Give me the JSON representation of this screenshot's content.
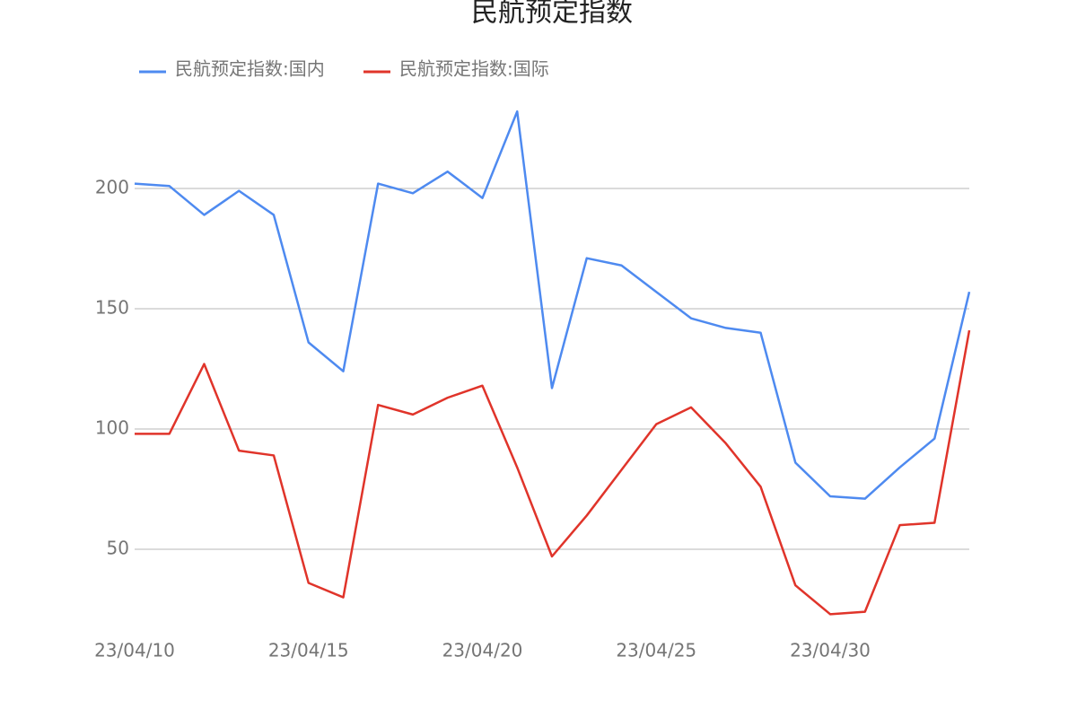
{
  "chart_data": {
    "type": "line",
    "title": "民航预定指数",
    "categories": [
      "23/04/10",
      null,
      null,
      null,
      null,
      "23/04/15",
      null,
      null,
      null,
      null,
      "23/04/20",
      null,
      null,
      null,
      null,
      "23/04/25",
      null,
      null,
      null,
      null,
      "23/04/30",
      null,
      null,
      null,
      null
    ],
    "series": [
      {
        "name": "民航预定指数:国内",
        "color": "#4e8af0",
        "values": [
          202,
          201,
          189,
          199,
          189,
          136,
          124,
          202,
          198,
          207,
          196,
          232,
          117,
          171,
          168,
          157,
          146,
          142,
          140,
          86,
          72,
          71,
          84,
          96,
          157
        ]
      },
      {
        "name": "民航预定指数:国际",
        "color": "#e0342a",
        "values": [
          98,
          98,
          127,
          91,
          89,
          36,
          30,
          110,
          106,
          113,
          118,
          84,
          47,
          64,
          83,
          102,
          109,
          94,
          76,
          35,
          23,
          24,
          60,
          61,
          141
        ]
      }
    ],
    "ylim": [
      17,
      237
    ],
    "yticks": [
      50,
      100,
      150,
      200
    ],
    "grid": true
  }
}
